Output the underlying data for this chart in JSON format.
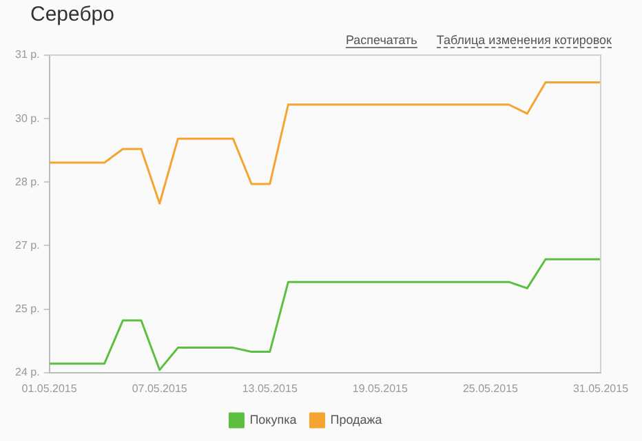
{
  "chart_data": {
    "type": "line",
    "title": "Серебро",
    "annotations": [
      "Распечатать",
      "Таблица изменения котировок"
    ],
    "x": [
      "2015-05-01",
      "2015-05-02",
      "2015-05-03",
      "2015-05-04",
      "2015-05-05",
      "2015-05-06",
      "2015-05-07",
      "2015-05-08",
      "2015-05-09",
      "2015-05-10",
      "2015-05-11",
      "2015-05-12",
      "2015-05-13",
      "2015-05-14",
      "2015-05-15",
      "2015-05-16",
      "2015-05-17",
      "2015-05-18",
      "2015-05-19",
      "2015-05-20",
      "2015-05-21",
      "2015-05-22",
      "2015-05-23",
      "2015-05-24",
      "2015-05-25",
      "2015-05-26",
      "2015-05-27",
      "2015-05-28",
      "2015-05-29",
      "2015-05-30",
      "2015-05-31"
    ],
    "series": [
      {
        "name": "Покупка",
        "color": "#5cbf3f",
        "values": [
          24.2,
          24.2,
          24.2,
          24.2,
          25.15,
          25.15,
          24.06,
          24.55,
          24.55,
          24.55,
          24.55,
          24.46,
          24.46,
          26.0,
          26.0,
          26.0,
          26.0,
          26.0,
          26.0,
          26.0,
          26.0,
          26.0,
          26.0,
          26.0,
          26.0,
          26.0,
          25.86,
          26.5,
          26.5,
          26.5,
          26.5
        ]
      },
      {
        "name": "Продажа",
        "color": "#f5a431",
        "values": [
          28.63,
          28.63,
          28.63,
          28.63,
          28.93,
          28.93,
          27.73,
          29.16,
          29.16,
          29.16,
          29.16,
          28.16,
          28.16,
          29.91,
          29.91,
          29.91,
          29.91,
          29.91,
          29.91,
          29.91,
          29.91,
          29.91,
          29.91,
          29.91,
          29.91,
          29.91,
          29.71,
          30.4,
          30.4,
          30.4,
          30.4
        ]
      }
    ],
    "ylim": [
      24,
      31
    ],
    "yticks": [
      {
        "value": 24,
        "label": "24 р."
      },
      {
        "value": 25.4,
        "label": "25 р."
      },
      {
        "value": 26.8,
        "label": "27 р."
      },
      {
        "value": 28.2,
        "label": "28 р."
      },
      {
        "value": 29.6,
        "label": "30 р."
      },
      {
        "value": 31,
        "label": "31 р."
      }
    ],
    "xlim": [
      "2015-05-01",
      "2015-05-31"
    ],
    "xticks": [
      {
        "value": "2015-05-01",
        "label": "01.05.2015"
      },
      {
        "value": "2015-05-07",
        "label": "07.05.2015"
      },
      {
        "value": "2015-05-13",
        "label": "13.05.2015"
      },
      {
        "value": "2015-05-19",
        "label": "19.05.2015"
      },
      {
        "value": "2015-05-25",
        "label": "25.05.2015"
      },
      {
        "value": "2015-05-31",
        "label": "31.05.2015"
      }
    ],
    "grid": false,
    "legend": "bottom",
    "marker": "none",
    "line_style": "solid"
  }
}
